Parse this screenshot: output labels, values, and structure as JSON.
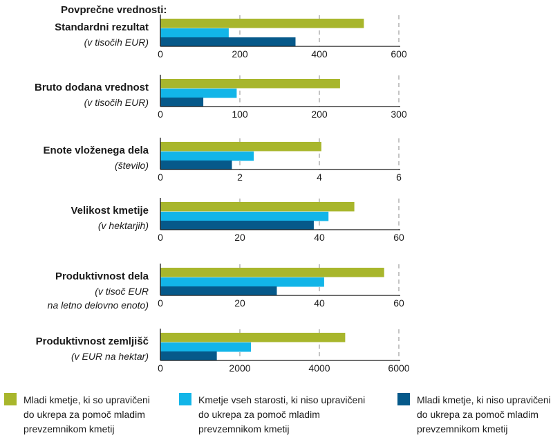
{
  "chart_data": {
    "type": "bar",
    "orientation": "horizontal",
    "header": "Povprečne vrednosti:",
    "series": [
      {
        "name": "Mladi kmetje, ki so upravičeni do ukrepa za pomoč mladim prevzemnikom kmetij",
        "color": "#a8b62c",
        "legend_lines": [
          "Mladi kmetje, ki so upravičeni",
          "do ukrepa za pomoč mladim",
          "prevzemnikom kmetij"
        ]
      },
      {
        "name": "Kmetje vseh starosti, ki niso upravičeni do ukrepa za pomoč mladim prevzemnikom kmetij",
        "color": "#12b5e8",
        "legend_lines": [
          "Kmetje vseh starosti, ki niso upravičeni",
          "do ukrepa za pomoč mladim",
          "prevzemnikom kmetij"
        ]
      },
      {
        "name": "Mladi kmetje, ki niso upravičeni do ukrepa za pomoč mladim prevzemnikom kmetij",
        "color": "#06598a",
        "legend_lines": [
          "Mladi kmetje, ki niso upravičeni",
          "do ukrepa za pomoč mladim",
          "prevzemnikom kmetij"
        ]
      }
    ],
    "panels": [
      {
        "title": "Standardni rezultat",
        "subtitle": [
          "(v tisočih EUR)"
        ],
        "xlim": [
          0,
          600
        ],
        "ticks": [
          0,
          200,
          400,
          600
        ],
        "tick_labels": [
          "0",
          "200",
          "400",
          "600"
        ],
        "values": [
          512,
          172,
          340
        ]
      },
      {
        "title": "Bruto dodana vrednost",
        "subtitle": [
          "(v tisočih EUR)"
        ],
        "xlim": [
          0,
          300
        ],
        "ticks": [
          0,
          100,
          200,
          300
        ],
        "tick_labels": [
          "0",
          "100",
          "200",
          "300"
        ],
        "values": [
          226,
          96,
          54
        ]
      },
      {
        "title": "Enote vloženega dela",
        "subtitle": [
          "(število)"
        ],
        "xlim": [
          0,
          6
        ],
        "ticks": [
          0,
          2,
          4,
          6
        ],
        "tick_labels": [
          "0",
          "2",
          "4",
          "6"
        ],
        "values": [
          4.05,
          2.35,
          1.8
        ]
      },
      {
        "title": "Velikost kmetije",
        "subtitle": [
          "(v hektarjih)"
        ],
        "xlim": [
          0,
          60
        ],
        "ticks": [
          0,
          20,
          40,
          60
        ],
        "tick_labels": [
          "0",
          "20",
          "40",
          "60"
        ],
        "values": [
          48.8,
          42.3,
          38.6
        ]
      },
      {
        "title": "Produktivnost dela",
        "subtitle": [
          "(v tisoč EUR",
          "na letno delovno enoto)"
        ],
        "xlim": [
          0,
          60
        ],
        "ticks": [
          0,
          20,
          40,
          60
        ],
        "tick_labels": [
          "0",
          "20",
          "40",
          "60"
        ],
        "values": [
          56.3,
          41.2,
          29.3
        ]
      },
      {
        "title": "Produktivnost zemljišč",
        "subtitle": [
          "(v EUR na hektar)"
        ],
        "xlim": [
          0,
          6000
        ],
        "ticks": [
          0,
          2000,
          4000,
          6000
        ],
        "tick_labels": [
          "0",
          "2000",
          "4000",
          "6000"
        ],
        "values": [
          4650,
          2280,
          1420
        ]
      }
    ]
  }
}
